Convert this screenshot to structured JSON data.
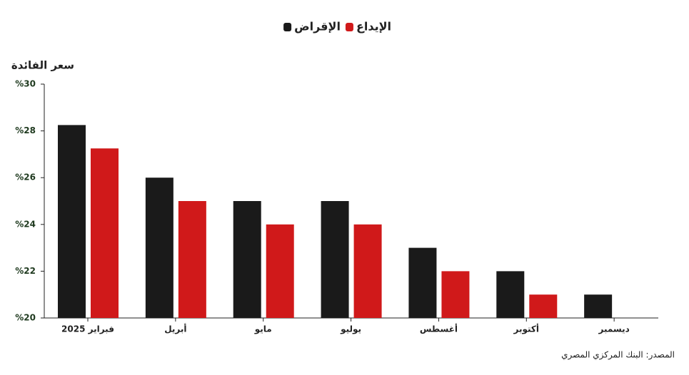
{
  "chart_data": {
    "type": "bar",
    "y_label": "سعر الفائدة",
    "source": "المصدر: البنك المركزي المصري",
    "categories": [
      "فبراير 2025",
      "أبريل",
      "مايو",
      "يوليو",
      "أغسطس",
      "أكتوبر",
      "ديسمبر"
    ],
    "series": [
      {
        "name": "الإقراض",
        "color": "#1a1a1a",
        "values": [
          28.25,
          26,
          25,
          25,
          23,
          22,
          21
        ]
      },
      {
        "name": "الإيداع",
        "color": "#d0191a",
        "values": [
          27.25,
          25,
          24,
          24,
          22,
          21,
          null
        ]
      }
    ],
    "ylim": [
      20,
      30
    ],
    "yticks": [
      {
        "value": 20,
        "label": "%20"
      },
      {
        "value": 22,
        "label": "%22"
      },
      {
        "value": 24,
        "label": "%24"
      },
      {
        "value": 26,
        "label": "%26"
      },
      {
        "value": 28,
        "label": "%28"
      },
      {
        "value": 30,
        "label": "%30"
      }
    ],
    "grid": false
  }
}
